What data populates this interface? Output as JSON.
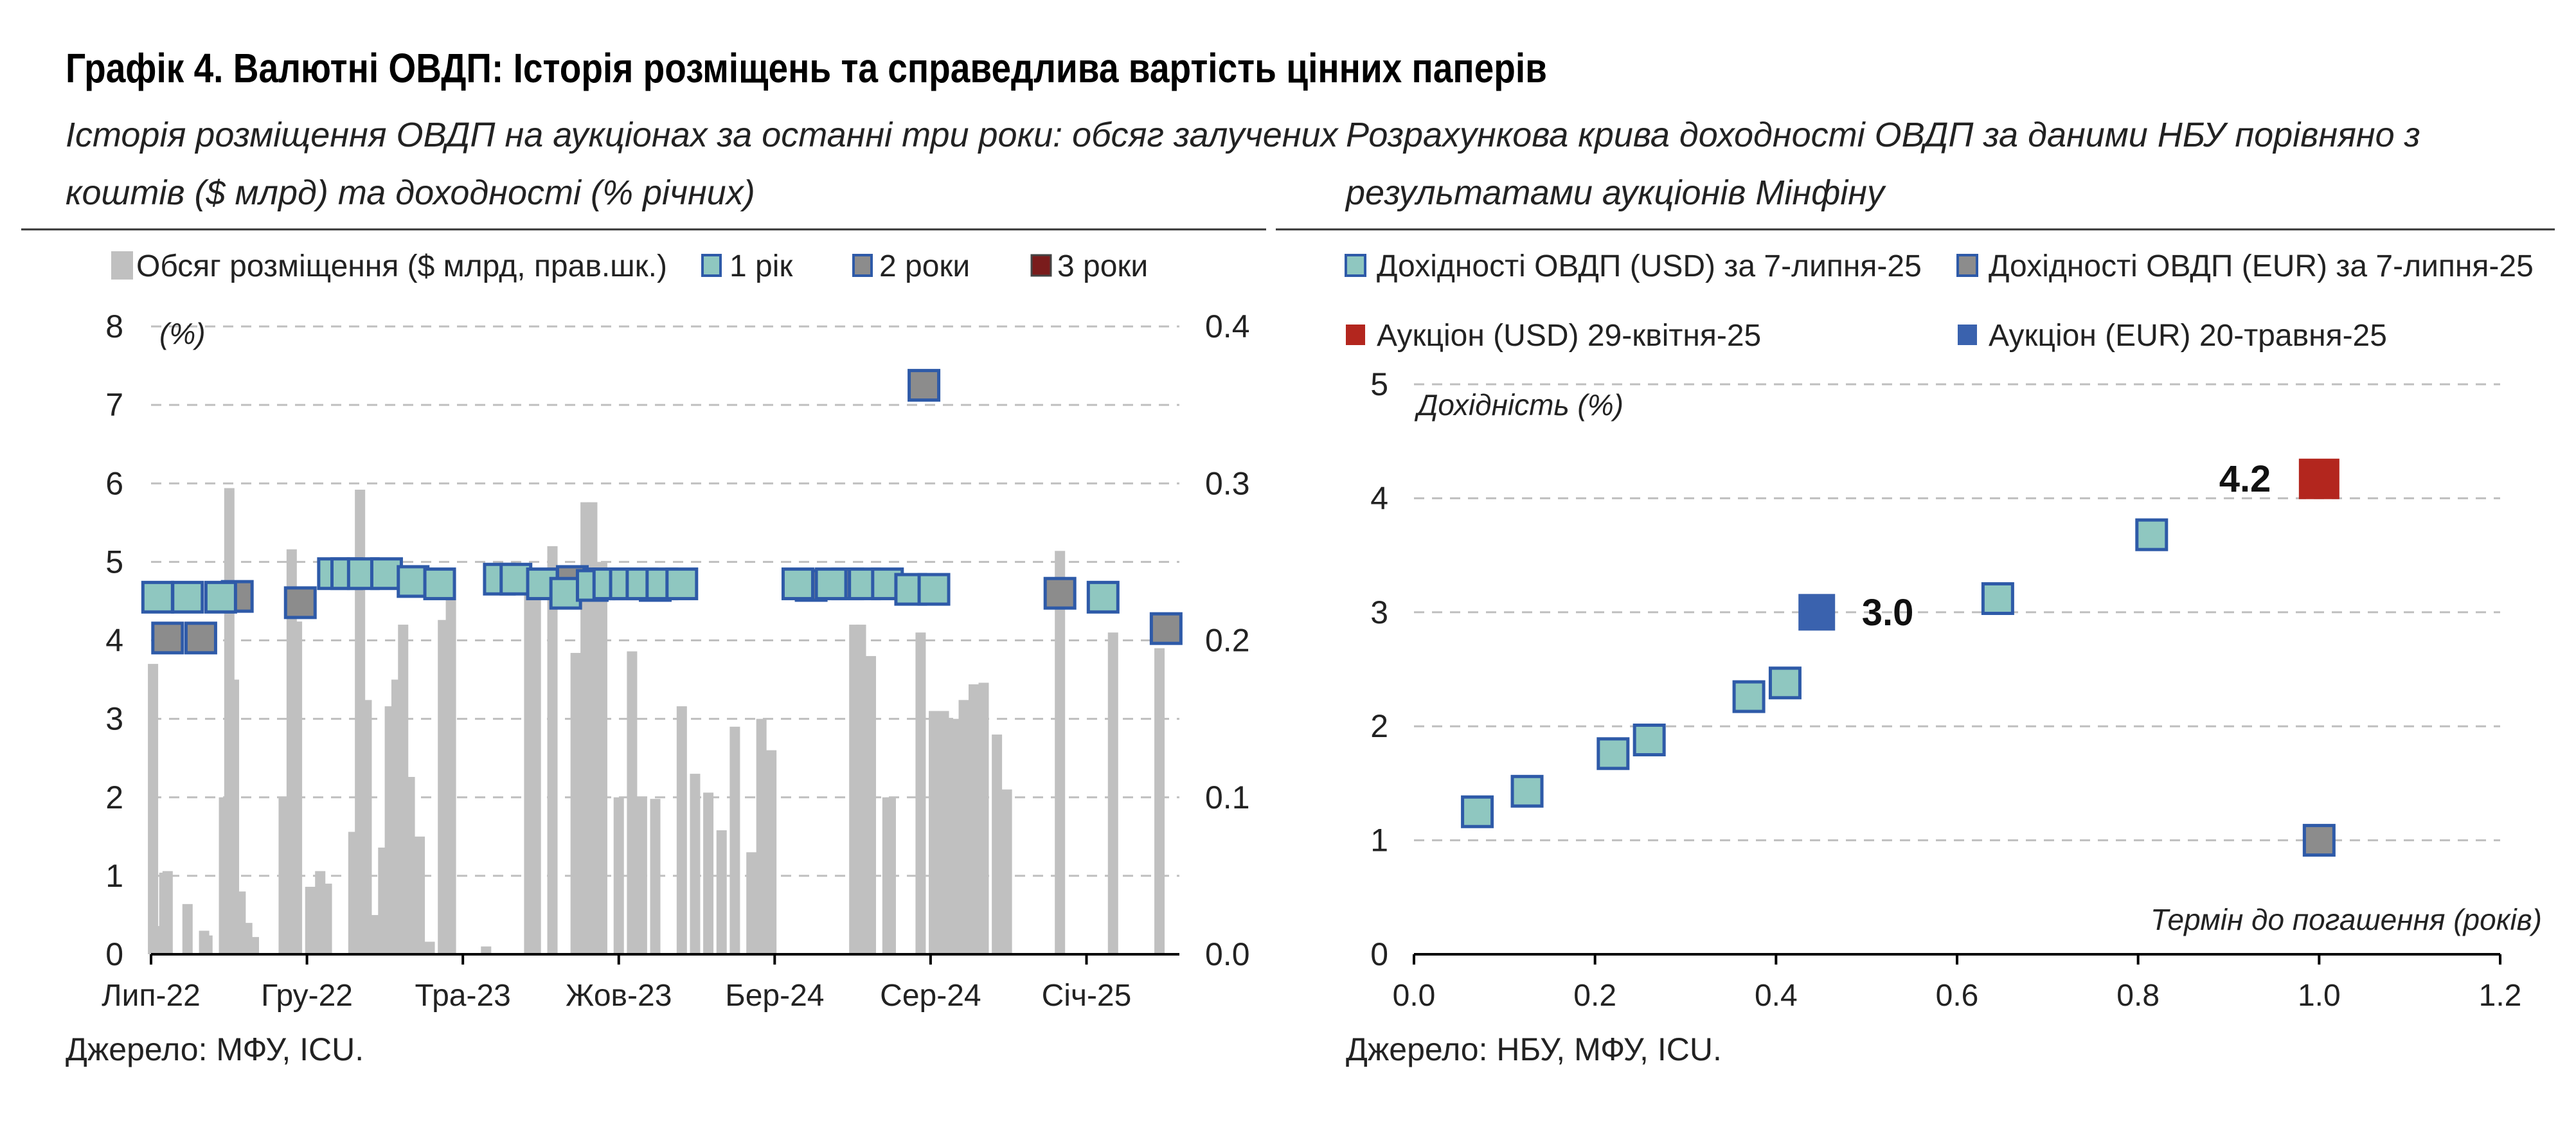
{
  "main_title": "Графік 4. Валютні ОВДП: Історія розміщень та справедлива вартість цінних паперів",
  "colors": {
    "bar": "#c0c0c0",
    "one_year": "#8fc7c0",
    "two_years": "#8c8c8c",
    "three_years": "#7a1c1c",
    "marker_border": "#2e5aa8",
    "usd_auction": "#b3261e",
    "eur_auction": "#3a62ae",
    "grid": "#bfbfbf"
  },
  "chart_data": [
    {
      "type": "bar+scatter",
      "title": "Історія розміщення ОВДП на аукціонах за останні три роки: обсяг залучених коштів ($ млрд) та доходності (% річних)",
      "title_lines": [
        "Історія розміщення ОВДП на аукціонах за останні три роки: обсяг залучених",
        "коштів ($ млрд) та доходності (% річних)"
      ],
      "left_axis_unit": "(%)",
      "ylim_left": [
        0,
        8
      ],
      "ylim_right": [
        0,
        0.4
      ],
      "yticks_left": [
        "0",
        "1",
        "2",
        "3",
        "4",
        "5",
        "6",
        "7",
        "8"
      ],
      "yticks_right": [
        "0.0",
        "0.1",
        "0.2",
        "0.3",
        "0.4"
      ],
      "x_tick_labels": [
        "Лип-22",
        "Гру-22",
        "Тра-23",
        "Жов-23",
        "Бер-24",
        "Сер-24",
        "Січ-25"
      ],
      "legend": {
        "bars": "Обсяг розміщення ($ млрд, прав.шк.)",
        "one_year": "1 рік",
        "two_years": "2 роки",
        "three_years": "3 роки"
      },
      "bars_volume_bn_usd": [
        {
          "t": 0.03,
          "v": 0.185
        },
        {
          "t": 0.11,
          "v": 0.018
        },
        {
          "t": 0.2,
          "v": 0.052
        },
        {
          "t": 0.25,
          "v": 0.053
        },
        {
          "t": 0.55,
          "v": 0.032
        },
        {
          "t": 0.8,
          "v": 0.015
        },
        {
          "t": 0.85,
          "v": 0.012
        },
        {
          "t": 1.1,
          "v": 0.1
        },
        {
          "t": 1.18,
          "v": 0.297
        },
        {
          "t": 1.25,
          "v": 0.175
        },
        {
          "t": 1.35,
          "v": 0.04
        },
        {
          "t": 1.45,
          "v": 0.02
        },
        {
          "t": 1.55,
          "v": 0.011
        },
        {
          "t": 2.0,
          "v": 0.1
        },
        {
          "t": 2.12,
          "v": 0.258
        },
        {
          "t": 2.2,
          "v": 0.212
        },
        {
          "t": 2.4,
          "v": 0.043
        },
        {
          "t": 2.55,
          "v": 0.053
        },
        {
          "t": 2.65,
          "v": 0.045
        },
        {
          "t": 3.05,
          "v": 0.078
        },
        {
          "t": 3.15,
          "v": 0.296
        },
        {
          "t": 3.25,
          "v": 0.162
        },
        {
          "t": 3.35,
          "v": 0.025
        },
        {
          "t": 3.5,
          "v": 0.068
        },
        {
          "t": 3.6,
          "v": 0.158
        },
        {
          "t": 3.7,
          "v": 0.175
        },
        {
          "t": 3.8,
          "v": 0.21
        },
        {
          "t": 3.9,
          "v": 0.113
        },
        {
          "t": 4.05,
          "v": 0.075
        },
        {
          "t": 4.2,
          "v": 0.008
        },
        {
          "t": 4.4,
          "v": 0.213
        },
        {
          "t": 4.52,
          "v": 0.245
        },
        {
          "t": 5.05,
          "v": 0.005
        },
        {
          "t": 5.7,
          "v": 0.242
        },
        {
          "t": 5.8,
          "v": 0.24
        },
        {
          "t": 6.05,
          "v": 0.26
        },
        {
          "t": 6.4,
          "v": 0.192
        },
        {
          "t": 6.55,
          "v": 0.288
        },
        {
          "t": 6.65,
          "v": 0.288
        },
        {
          "t": 6.8,
          "v": 0.25
        },
        {
          "t": 7.05,
          "v": 0.1
        },
        {
          "t": 7.25,
          "v": 0.193
        },
        {
          "t": 7.4,
          "v": 0.1
        },
        {
          "t": 7.6,
          "v": 0.099
        },
        {
          "t": 8.0,
          "v": 0.158
        },
        {
          "t": 8.2,
          "v": 0.115
        },
        {
          "t": 8.4,
          "v": 0.103
        },
        {
          "t": 8.6,
          "v": 0.079
        },
        {
          "t": 8.8,
          "v": 0.145
        },
        {
          "t": 9.05,
          "v": 0.065
        },
        {
          "t": 9.2,
          "v": 0.15
        },
        {
          "t": 9.35,
          "v": 0.13
        },
        {
          "t": 10.6,
          "v": 0.21
        },
        {
          "t": 10.7,
          "v": 0.21
        },
        {
          "t": 10.85,
          "v": 0.19
        },
        {
          "t": 11.1,
          "v": 0.1
        },
        {
          "t": 11.15,
          "v": 0.1
        },
        {
          "t": 11.6,
          "v": 0.205
        },
        {
          "t": 11.8,
          "v": 0.155
        },
        {
          "t": 11.95,
          "v": 0.155
        },
        {
          "t": 12.1,
          "v": 0.15
        },
        {
          "t": 12.25,
          "v": 0.162
        },
        {
          "t": 12.4,
          "v": 0.172
        },
        {
          "t": 12.55,
          "v": 0.173
        },
        {
          "t": 12.75,
          "v": 0.14
        },
        {
          "t": 12.9,
          "v": 0.105
        },
        {
          "t": 13.7,
          "v": 0.257
        },
        {
          "t": 14.5,
          "v": 0.205
        },
        {
          "t": 15.2,
          "v": 0.195
        }
      ],
      "series": [
        {
          "name": "1 рік",
          "points": [
            {
              "t": 0.1,
              "y": 4.55
            },
            {
              "t": 0.55,
              "y": 4.55
            },
            {
              "t": 1.05,
              "y": 4.55
            },
            {
              "t": 2.75,
              "y": 4.85
            },
            {
              "t": 2.95,
              "y": 4.85
            },
            {
              "t": 3.2,
              "y": 4.85
            },
            {
              "t": 3.55,
              "y": 4.85
            },
            {
              "t": 3.95,
              "y": 4.75
            },
            {
              "t": 4.35,
              "y": 4.72
            },
            {
              "t": 5.25,
              "y": 4.78
            },
            {
              "t": 5.5,
              "y": 4.78
            },
            {
              "t": 5.9,
              "y": 4.72
            },
            {
              "t": 6.25,
              "y": 4.6
            },
            {
              "t": 6.65,
              "y": 4.7
            },
            {
              "t": 6.9,
              "y": 4.72
            },
            {
              "t": 7.15,
              "y": 4.72
            },
            {
              "t": 7.4,
              "y": 4.72
            },
            {
              "t": 7.7,
              "y": 4.72
            },
            {
              "t": 8.0,
              "y": 4.72
            },
            {
              "t": 9.75,
              "y": 4.72
            },
            {
              "t": 10.25,
              "y": 4.72
            },
            {
              "t": 10.75,
              "y": 4.72
            },
            {
              "t": 11.1,
              "y": 4.72
            },
            {
              "t": 11.45,
              "y": 4.65
            },
            {
              "t": 11.8,
              "y": 4.65
            },
            {
              "t": 14.35,
              "y": 4.55
            }
          ]
        },
        {
          "name": "2 роки",
          "points": [
            {
              "t": 0.25,
              "y": 4.03
            },
            {
              "t": 0.75,
              "y": 4.03
            },
            {
              "t": 1.3,
              "y": 4.56
            },
            {
              "t": 2.25,
              "y": 4.48
            },
            {
              "t": 6.35,
              "y": 4.75
            },
            {
              "t": 6.75,
              "y": 4.72
            },
            {
              "t": 7.2,
              "y": 4.72
            },
            {
              "t": 7.6,
              "y": 4.7
            },
            {
              "t": 9.95,
              "y": 4.7
            },
            {
              "t": 10.5,
              "y": 4.72
            },
            {
              "t": 11.65,
              "y": 7.25
            },
            {
              "t": 13.7,
              "y": 4.6
            },
            {
              "t": 15.3,
              "y": 4.15
            }
          ]
        },
        {
          "name": "3 роки",
          "points": []
        }
      ]
    },
    {
      "type": "scatter",
      "title": "Розрахункова крива доходності ОВДП за даними НБУ порівняно з результатами аукціонів Мінфіну",
      "title_lines": [
        "Розрахункова крива доходності ОВДП за даними НБУ порівняно з",
        "результатами аукціонів Мінфіну"
      ],
      "xlabel": "Термін до погашення (років)",
      "ylabel": "Дохідність (%)",
      "xlim": [
        0,
        1.2
      ],
      "ylim": [
        0,
        5
      ],
      "xticks": [
        "0.0",
        "0.2",
        "0.4",
        "0.6",
        "0.8",
        "1.0",
        "1.2"
      ],
      "yticks": [
        "0",
        "1",
        "2",
        "3",
        "4",
        "5"
      ],
      "series": [
        {
          "name": "Дохідності ОВДП (USD) за 7-липня-25",
          "points": [
            {
              "x": 0.07,
              "y": 1.25
            },
            {
              "x": 0.125,
              "y": 1.43
            },
            {
              "x": 0.22,
              "y": 1.76
            },
            {
              "x": 0.26,
              "y": 1.88
            },
            {
              "x": 0.37,
              "y": 2.26
            },
            {
              "x": 0.41,
              "y": 2.38
            },
            {
              "x": 0.645,
              "y": 3.12
            },
            {
              "x": 0.815,
              "y": 3.68
            }
          ]
        },
        {
          "name": "Дохідності ОВДП (EUR) за 7-липня-25",
          "points": [
            {
              "x": 1.0,
              "y": 1.0
            }
          ]
        },
        {
          "name": "Аукціон (USD) 29-квітня-25",
          "points": [
            {
              "x": 1.0,
              "y": 4.17
            }
          ],
          "label": "4.2"
        },
        {
          "name": "Аукціон (EUR) 20-травня-25",
          "points": [
            {
              "x": 0.445,
              "y": 3.0
            }
          ],
          "label": "3.0"
        }
      ]
    }
  ],
  "source_left": "Джерело: МФУ, ICU.",
  "source_right": "Джерело: НБУ, МФУ, ICU."
}
